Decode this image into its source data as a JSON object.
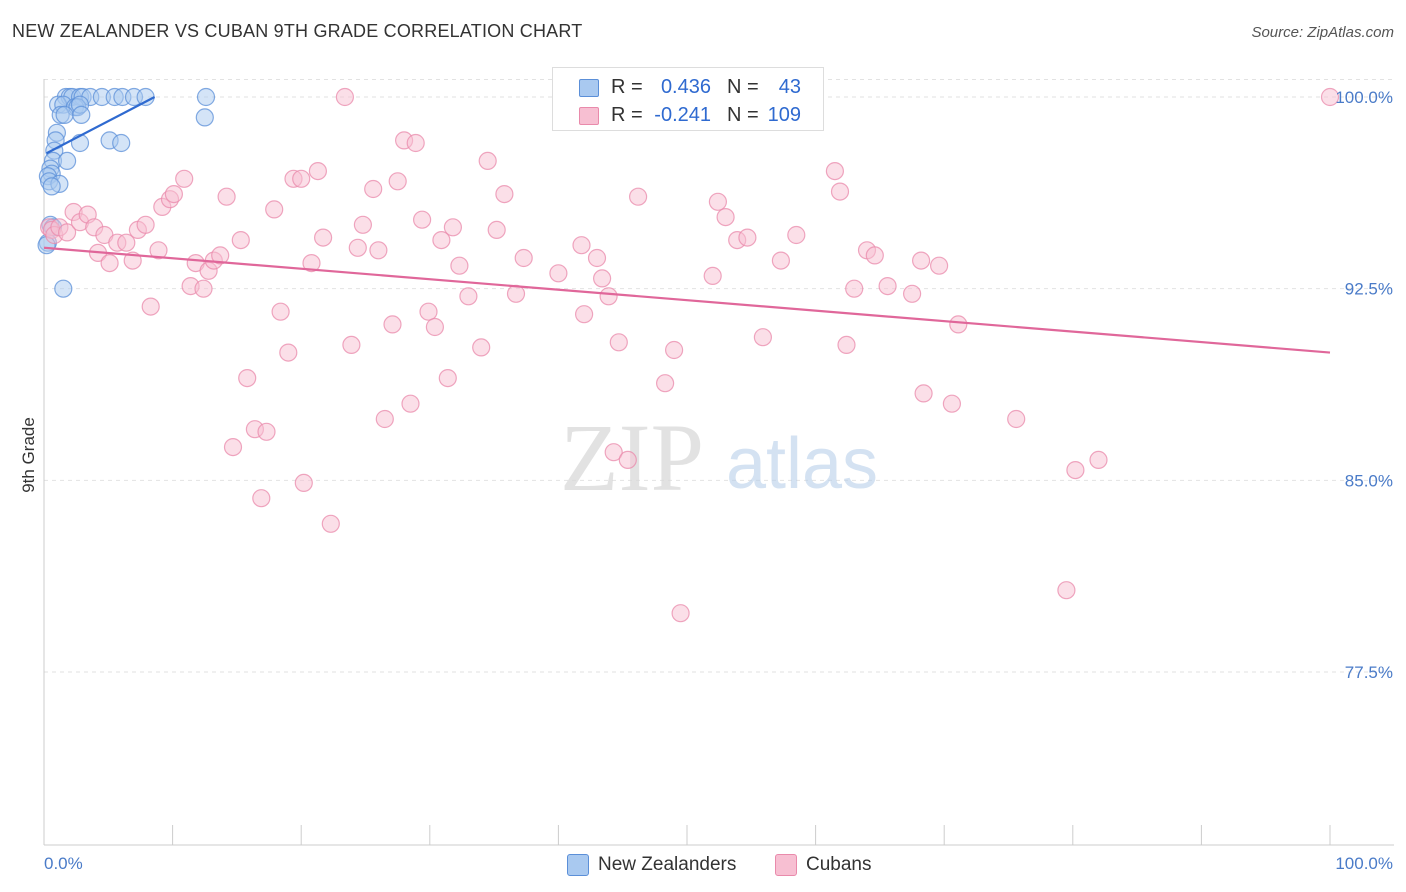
{
  "title": "NEW ZEALANDER VS CUBAN 9TH GRADE CORRELATION CHART",
  "source": "Source: ZipAtlas.com",
  "watermark": {
    "zip": "ZIP",
    "atlas": "atlas"
  },
  "stats": {
    "rows": [
      {
        "r_label": "R =",
        "r_value": "0.436",
        "n_label": "N =",
        "n_value": "43"
      },
      {
        "r_label": "R =",
        "r_value": "-0.241",
        "n_label": "N =",
        "n_value": "109"
      }
    ]
  },
  "legend": {
    "items": [
      {
        "label": "New Zealanders"
      },
      {
        "label": "Cubans"
      }
    ]
  },
  "colors": {
    "blue_fill": "#a9c9f0",
    "blue_stroke": "#5b8fd8",
    "blue_line": "#2f6ad0",
    "pink_fill": "#f7bfd2",
    "pink_stroke": "#e98aab",
    "pink_line": "#e0679a",
    "grid": "#e2e2e2",
    "axis_label": "#4a7bc8"
  },
  "chart_data": {
    "type": "scatter",
    "title": "NEW ZEALANDER VS CUBAN 9TH GRADE CORRELATION CHART",
    "xlabel": "",
    "ylabel": "9th Grade",
    "xlim": [
      0,
      100
    ],
    "ylim": [
      71.5,
      101.2
    ],
    "x_tick_labels": [
      "0.0%",
      "100.0%"
    ],
    "y_ticks": [
      {
        "value": 100.0,
        "label": "100.0%"
      },
      {
        "value": 92.5,
        "label": "92.5%"
      },
      {
        "value": 85.0,
        "label": "85.0%"
      },
      {
        "value": 77.5,
        "label": "77.5%"
      }
    ],
    "grid": true,
    "legend_position": "bottom-center",
    "series": [
      {
        "name": "New Zealanders",
        "color": "#a9c9f0",
        "trend": {
          "x": [
            0.2,
            8.6
          ],
          "y": [
            97.8,
            100.0
          ]
        },
        "points": [
          [
            1.7,
            100.0
          ],
          [
            2.0,
            100.0
          ],
          [
            2.2,
            100.0
          ],
          [
            2.8,
            100.0
          ],
          [
            3.0,
            100.0
          ],
          [
            3.6,
            100.0
          ],
          [
            4.5,
            100.0
          ],
          [
            5.5,
            100.0
          ],
          [
            6.1,
            100.0
          ],
          [
            7.0,
            100.0
          ],
          [
            7.9,
            100.0
          ],
          [
            12.6,
            100.0
          ],
          [
            1.1,
            99.7
          ],
          [
            1.5,
            99.7
          ],
          [
            2.4,
            99.6
          ],
          [
            2.6,
            99.6
          ],
          [
            2.8,
            99.7
          ],
          [
            1.3,
            99.3
          ],
          [
            1.6,
            99.3
          ],
          [
            2.9,
            99.3
          ],
          [
            12.5,
            99.2
          ],
          [
            1.0,
            98.6
          ],
          [
            0.9,
            98.3
          ],
          [
            2.8,
            98.2
          ],
          [
            5.1,
            98.3
          ],
          [
            6.0,
            98.2
          ],
          [
            0.8,
            97.9
          ],
          [
            0.7,
            97.5
          ],
          [
            1.8,
            97.5
          ],
          [
            0.5,
            97.2
          ],
          [
            0.6,
            97.0
          ],
          [
            0.3,
            96.9
          ],
          [
            0.4,
            96.7
          ],
          [
            1.2,
            96.6
          ],
          [
            0.6,
            96.5
          ],
          [
            0.5,
            95.0
          ],
          [
            0.7,
            94.9
          ],
          [
            0.3,
            94.3
          ],
          [
            0.2,
            94.2
          ],
          [
            1.5,
            92.5
          ]
        ]
      },
      {
        "name": "Cubans",
        "color": "#f7bfd2",
        "trend": {
          "x": [
            0.0,
            100.0
          ],
          "y": [
            94.1,
            90.0
          ]
        },
        "points": [
          [
            0.4,
            94.9
          ],
          [
            0.6,
            94.8
          ],
          [
            0.8,
            94.6
          ],
          [
            1.2,
            94.9
          ],
          [
            1.8,
            94.7
          ],
          [
            2.3,
            95.5
          ],
          [
            2.8,
            95.1
          ],
          [
            3.4,
            95.4
          ],
          [
            3.9,
            94.9
          ],
          [
            4.2,
            93.9
          ],
          [
            4.7,
            94.6
          ],
          [
            5.1,
            93.5
          ],
          [
            5.7,
            94.3
          ],
          [
            6.4,
            94.3
          ],
          [
            6.9,
            93.6
          ],
          [
            7.3,
            94.8
          ],
          [
            7.9,
            95.0
          ],
          [
            8.3,
            91.8
          ],
          [
            8.9,
            94.0
          ],
          [
            9.2,
            95.7
          ],
          [
            9.8,
            96.0
          ],
          [
            10.1,
            96.2
          ],
          [
            10.9,
            96.8
          ],
          [
            11.4,
            92.6
          ],
          [
            11.8,
            93.5
          ],
          [
            12.4,
            92.5
          ],
          [
            12.8,
            93.2
          ],
          [
            13.2,
            93.6
          ],
          [
            13.7,
            93.8
          ],
          [
            14.2,
            96.1
          ],
          [
            14.7,
            86.3
          ],
          [
            15.3,
            94.4
          ],
          [
            15.8,
            89.0
          ],
          [
            16.4,
            87.0
          ],
          [
            16.9,
            84.3
          ],
          [
            17.3,
            86.9
          ],
          [
            17.9,
            95.6
          ],
          [
            18.4,
            91.6
          ],
          [
            19.0,
            90.0
          ],
          [
            19.4,
            96.8
          ],
          [
            20.0,
            96.8
          ],
          [
            20.2,
            84.9
          ],
          [
            20.8,
            93.5
          ],
          [
            21.3,
            97.1
          ],
          [
            21.7,
            94.5
          ],
          [
            22.3,
            83.3
          ],
          [
            23.4,
            100.0
          ],
          [
            23.9,
            90.3
          ],
          [
            24.4,
            94.1
          ],
          [
            24.8,
            95.0
          ],
          [
            25.6,
            96.4
          ],
          [
            26.0,
            94.0
          ],
          [
            26.5,
            87.4
          ],
          [
            27.1,
            91.1
          ],
          [
            27.5,
            96.7
          ],
          [
            28.0,
            98.3
          ],
          [
            28.5,
            88.0
          ],
          [
            28.9,
            98.2
          ],
          [
            29.4,
            95.2
          ],
          [
            29.9,
            91.6
          ],
          [
            30.4,
            91.0
          ],
          [
            30.9,
            94.4
          ],
          [
            31.4,
            89.0
          ],
          [
            31.8,
            94.9
          ],
          [
            32.3,
            93.4
          ],
          [
            33.0,
            92.2
          ],
          [
            34.0,
            90.2
          ],
          [
            34.5,
            97.5
          ],
          [
            35.2,
            94.8
          ],
          [
            35.8,
            96.2
          ],
          [
            36.7,
            92.3
          ],
          [
            37.3,
            93.7
          ],
          [
            40.0,
            93.1
          ],
          [
            41.8,
            94.2
          ],
          [
            42.0,
            91.5
          ],
          [
            43.0,
            93.7
          ],
          [
            43.4,
            92.9
          ],
          [
            43.9,
            92.2
          ],
          [
            44.3,
            86.1
          ],
          [
            44.7,
            90.4
          ],
          [
            45.4,
            85.8
          ],
          [
            46.2,
            96.1
          ],
          [
            48.3,
            88.8
          ],
          [
            49.0,
            90.1
          ],
          [
            49.5,
            79.8
          ],
          [
            52.0,
            93.0
          ],
          [
            52.4,
            95.9
          ],
          [
            53.0,
            95.3
          ],
          [
            53.9,
            94.4
          ],
          [
            54.7,
            94.5
          ],
          [
            55.9,
            90.6
          ],
          [
            57.3,
            93.6
          ],
          [
            58.5,
            94.6
          ],
          [
            61.5,
            97.1
          ],
          [
            61.9,
            96.3
          ],
          [
            62.4,
            90.3
          ],
          [
            63.0,
            92.5
          ],
          [
            64.0,
            94.0
          ],
          [
            64.6,
            93.8
          ],
          [
            65.6,
            92.6
          ],
          [
            67.5,
            92.3
          ],
          [
            68.2,
            93.6
          ],
          [
            68.4,
            88.4
          ],
          [
            69.6,
            93.4
          ],
          [
            70.6,
            88.0
          ],
          [
            71.1,
            91.1
          ],
          [
            75.6,
            87.4
          ],
          [
            79.5,
            80.7
          ],
          [
            80.2,
            85.4
          ],
          [
            82.0,
            85.8
          ],
          [
            100.0,
            100.0
          ]
        ]
      }
    ]
  }
}
